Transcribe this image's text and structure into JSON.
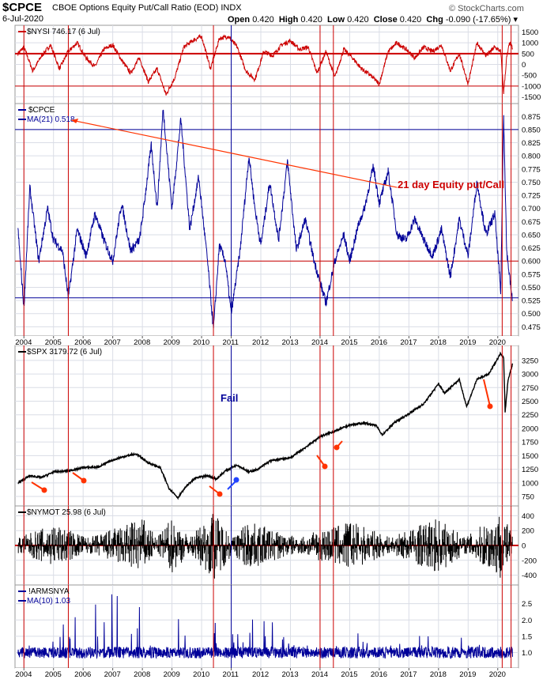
{
  "header": {
    "symbol": "$CPCE",
    "description": "CBOE Options Equity Put/Call Ratio (EOD)",
    "exchange": "INDX",
    "watermark": "© StockCharts.com",
    "date": "6-Jul-2020",
    "open_label": "Open",
    "open": "0.420",
    "high_label": "High",
    "high": "0.420",
    "low_label": "Low",
    "low": "0.420",
    "close_label": "Close",
    "close": "0.420",
    "chg_label": "Chg",
    "chg": "-0.090 (-17.65%)"
  },
  "colors": {
    "red": "#cc0000",
    "blue": "#000099",
    "black": "#000000",
    "panel": "#ffffff",
    "grid": "#dadde6",
    "annot": "#ff3300"
  },
  "years": [
    "2004",
    "2005",
    "2006",
    "2007",
    "2008",
    "2009",
    "2010",
    "2011",
    "2012",
    "2013",
    "2014",
    "2015",
    "2016",
    "2017",
    "2018",
    "2019",
    "2020"
  ],
  "xrange": [
    2003.7,
    2020.7
  ],
  "vlines": {
    "red": [
      2004.0,
      2005.5,
      2010.4,
      2014.0,
      2014.45,
      2020.15,
      2020.45
    ],
    "blue": [
      2011.0
    ]
  },
  "panels": [
    {
      "id": "nysi",
      "label": "$NYSI 746.17 (6 Jul)",
      "color": "red",
      "ylim": [
        -1700,
        1700
      ],
      "ticks": [
        "1500",
        "1000",
        "500",
        "0",
        "-500",
        "-1000",
        "-1500"
      ],
      "tick_values": [
        1500,
        1000,
        500,
        0,
        -500,
        -1000,
        -1500
      ],
      "hlines": [
        {
          "value": 500,
          "color": "red",
          "width": 2
        },
        {
          "value": -1000,
          "color": "red",
          "width": 1
        }
      ]
    },
    {
      "id": "cpce",
      "label": "$CPCE",
      "ma_label": "MA(21) 0.518",
      "color": "blue",
      "ylim": [
        0.462,
        0.895
      ],
      "ticks": [
        "0.875",
        "0.850",
        "0.825",
        "0.800",
        "0.775",
        "0.750",
        "0.725",
        "0.700",
        "0.675",
        "0.650",
        "0.625",
        "0.600",
        "0.575",
        "0.550",
        "0.525",
        "0.500",
        "0.475"
      ],
      "tick_values": [
        0.875,
        0.85,
        0.825,
        0.8,
        0.775,
        0.75,
        0.725,
        0.7,
        0.675,
        0.65,
        0.625,
        0.6,
        0.575,
        0.55,
        0.525,
        0.5,
        0.475
      ],
      "hlines": [
        {
          "value": 0.85,
          "color": "blue",
          "width": 1
        },
        {
          "value": 0.6,
          "color": "red",
          "width": 1
        },
        {
          "value": 0.53,
          "color": "blue",
          "width": 1
        }
      ],
      "annotation": "21 day Equity put/Call"
    },
    {
      "id": "spx",
      "label": "$SPX 3179.72 (6 Jul)",
      "color": "black",
      "ylim": [
        620,
        3480
      ],
      "ticks": [
        "3250",
        "3000",
        "2750",
        "2500",
        "2250",
        "2000",
        "1750",
        "1500",
        "1250",
        "1000",
        "750"
      ],
      "tick_values": [
        3250,
        3000,
        2750,
        2500,
        2250,
        2000,
        1750,
        1500,
        1250,
        1000,
        750
      ],
      "annotation": "Fail"
    },
    {
      "id": "nymot",
      "label": "$NYMOT 25.98 (6 Jul)",
      "color": "black",
      "ylim": [
        -500,
        500
      ],
      "ticks": [
        "400",
        "200",
        "0",
        "-200",
        "-400"
      ],
      "tick_values": [
        400,
        200,
        0,
        -200,
        -400
      ],
      "hlines": [
        {
          "value": 0,
          "color": "red",
          "width": 2
        }
      ]
    },
    {
      "id": "arms",
      "label": "!ARMSNYA",
      "ma_label": "MA(10) 1.03",
      "color": "blue",
      "ylim": [
        0.6,
        3.0
      ],
      "ticks": [
        "2.5",
        "2.0",
        "1.5",
        "1.0"
      ],
      "tick_values": [
        2.5,
        2.0,
        1.5,
        1.0
      ]
    }
  ],
  "chart_data": [
    {
      "type": "line",
      "title": "$NYSI 746.17 (6 Jul)",
      "ylim": [
        -1700,
        1700
      ],
      "series": [
        {
          "name": "$NYSI",
          "x": [
            2003.8,
            2004.0,
            2004.3,
            2004.6,
            2004.9,
            2005.2,
            2005.5,
            2005.8,
            2006.1,
            2006.4,
            2006.7,
            2007.0,
            2007.3,
            2007.6,
            2007.9,
            2008.2,
            2008.5,
            2008.8,
            2009.1,
            2009.4,
            2009.7,
            2010.0,
            2010.3,
            2010.6,
            2010.9,
            2011.2,
            2011.5,
            2011.8,
            2012.1,
            2012.4,
            2012.7,
            2013.0,
            2013.3,
            2013.6,
            2013.9,
            2014.2,
            2014.5,
            2014.8,
            2015.1,
            2015.4,
            2015.7,
            2016.0,
            2016.3,
            2016.6,
            2016.9,
            2017.2,
            2017.5,
            2017.8,
            2018.1,
            2018.4,
            2018.7,
            2019.0,
            2019.3,
            2019.6,
            2019.9,
            2020.1,
            2020.2,
            2020.3,
            2020.4,
            2020.5
          ],
          "values": [
            500,
            800,
            -300,
            400,
            900,
            -200,
            600,
            1000,
            300,
            -100,
            700,
            900,
            200,
            -400,
            300,
            -800,
            -200,
            -1400,
            -600,
            800,
            1100,
            1300,
            -200,
            1200,
            1300,
            800,
            -300,
            -700,
            600,
            400,
            900,
            1100,
            700,
            800,
            -400,
            600,
            -600,
            700,
            300,
            -200,
            -500,
            -900,
            600,
            1000,
            700,
            300,
            800,
            600,
            900,
            -300,
            500,
            -900,
            1000,
            400,
            800,
            600,
            -1300,
            300,
            1000,
            746
          ]
        }
      ]
    },
    {
      "type": "line",
      "title": "$CPCE",
      "ylim": [
        0.462,
        0.895
      ],
      "series": [
        {
          "name": "MA(21) 0.518",
          "x": [
            2003.8,
            2004.0,
            2004.2,
            2004.5,
            2004.8,
            2005.0,
            2005.3,
            2005.5,
            2005.8,
            2006.1,
            2006.4,
            2006.7,
            2007.0,
            2007.3,
            2007.6,
            2007.9,
            2008.0,
            2008.3,
            2008.5,
            2008.7,
            2009.0,
            2009.3,
            2009.6,
            2009.9,
            2010.2,
            2010.4,
            2010.6,
            2010.8,
            2011.0,
            2011.3,
            2011.6,
            2011.8,
            2012.0,
            2012.3,
            2012.6,
            2012.9,
            2013.2,
            2013.5,
            2013.8,
            2014.0,
            2014.2,
            2014.5,
            2014.8,
            2015.0,
            2015.3,
            2015.5,
            2015.8,
            2016.0,
            2016.3,
            2016.6,
            2016.9,
            2017.2,
            2017.5,
            2017.8,
            2018.1,
            2018.4,
            2018.7,
            2019.0,
            2019.3,
            2019.6,
            2019.9,
            2020.1,
            2020.2,
            2020.3,
            2020.5
          ],
          "values": [
            0.66,
            0.51,
            0.74,
            0.6,
            0.7,
            0.64,
            0.62,
            0.53,
            0.66,
            0.61,
            0.69,
            0.64,
            0.6,
            0.71,
            0.62,
            0.64,
            0.68,
            0.82,
            0.7,
            0.89,
            0.7,
            0.87,
            0.66,
            0.76,
            0.6,
            0.47,
            0.63,
            0.6,
            0.5,
            0.62,
            0.8,
            0.7,
            0.63,
            0.75,
            0.64,
            0.79,
            0.62,
            0.68,
            0.6,
            0.56,
            0.52,
            0.6,
            0.65,
            0.6,
            0.67,
            0.7,
            0.78,
            0.71,
            0.77,
            0.65,
            0.64,
            0.68,
            0.64,
            0.61,
            0.66,
            0.57,
            0.68,
            0.61,
            0.75,
            0.65,
            0.69,
            0.54,
            0.88,
            0.62,
            0.52
          ]
        }
      ]
    },
    {
      "type": "line",
      "title": "$SPX 3179.72 (6 Jul)",
      "ylim": [
        620,
        3480
      ],
      "series": [
        {
          "name": "$SPX",
          "x": [
            2003.8,
            2004.2,
            2004.6,
            2005.0,
            2005.5,
            2006.0,
            2006.5,
            2007.0,
            2007.5,
            2007.8,
            2008.2,
            2008.6,
            2008.9,
            2009.2,
            2009.5,
            2009.8,
            2010.2,
            2010.5,
            2010.8,
            2011.2,
            2011.6,
            2011.9,
            2012.3,
            2012.7,
            2013.0,
            2013.5,
            2014.0,
            2014.5,
            2015.0,
            2015.5,
            2015.9,
            2016.1,
            2016.5,
            2017.0,
            2017.5,
            2018.0,
            2018.2,
            2018.7,
            2018.95,
            2019.3,
            2019.7,
            2020.1,
            2020.2,
            2020.25,
            2020.35,
            2020.5
          ],
          "values": [
            1000,
            1130,
            1100,
            1200,
            1220,
            1280,
            1290,
            1420,
            1500,
            1530,
            1370,
            1280,
            900,
            730,
            950,
            1090,
            1130,
            1070,
            1220,
            1330,
            1200,
            1250,
            1400,
            1440,
            1460,
            1650,
            1850,
            1950,
            2060,
            2100,
            2050,
            1880,
            2100,
            2270,
            2450,
            2820,
            2650,
            2900,
            2400,
            2900,
            3000,
            3380,
            3300,
            2300,
            2900,
            3180
          ]
        }
      ]
    },
    {
      "type": "line",
      "title": "$NYMOT 25.98 (6 Jul)",
      "ylim": [
        -500,
        500
      ],
      "series": [
        {
          "name": "$NYMOT",
          "x": [
            2003.8,
            2005,
            2008,
            2009,
            2010.4,
            2011.5,
            2015,
            2018,
            2020.1,
            2020.2,
            2020.5
          ],
          "values": [
            0,
            200,
            -300,
            300,
            -400,
            250,
            -250,
            300,
            -400,
            350,
            26
          ]
        }
      ]
    },
    {
      "type": "line",
      "title": "!ARMSNYA",
      "ylim": [
        0.6,
        3.0
      ],
      "series": [
        {
          "name": "MA(10) 1.03",
          "x": [
            2003.8,
            2007.0,
            2009.0,
            2010.4,
            2011.0,
            2015.0,
            2020.2,
            2020.5
          ],
          "values": [
            1.0,
            2.8,
            1.9,
            2.7,
            2.1,
            1.6,
            1.4,
            1.03
          ]
        }
      ]
    }
  ]
}
